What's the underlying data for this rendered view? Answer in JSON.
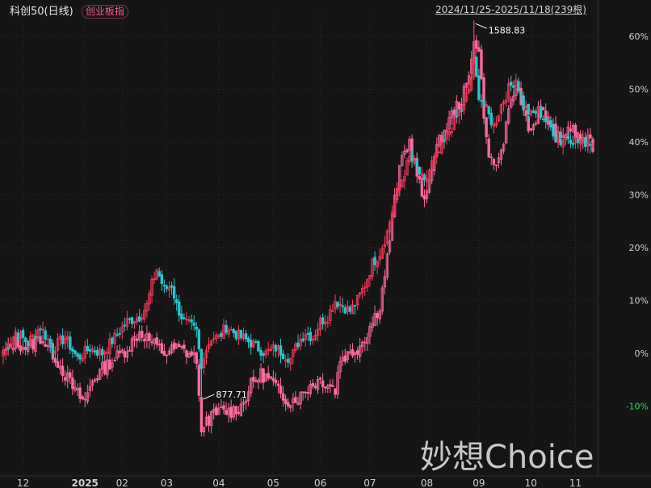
{
  "header": {
    "title": "科创50(日线)",
    "badge": "创业板指",
    "range": "2024/11/25-2025/11/18(239根)"
  },
  "watermark": "妙想Choice",
  "colors": {
    "background": "#151515",
    "up": "#ff3b5c",
    "down": "#27c6cf",
    "index2": "#ff6aa0",
    "grid": "#2e2e2e",
    "axis_text": "#cfcfcf",
    "negative_tick": "#2fd35c"
  },
  "chart_data": {
    "type": "line",
    "xlabel": "",
    "ylabel": "",
    "x_ticks": [
      "12",
      "2025",
      "02",
      "03",
      "04",
      "05",
      "06",
      "07",
      "08",
      "09",
      "10",
      "11"
    ],
    "y_ticks": [
      "60%",
      "50%",
      "40%",
      "30%",
      "20%",
      "10%",
      "0%",
      "-10%"
    ],
    "ylim": [
      -20,
      65
    ],
    "grid": true,
    "annotations": [
      {
        "text": "1588.83",
        "at_percent": 63
      },
      {
        "text": "877.71",
        "at_percent": -9
      }
    ],
    "series": [
      {
        "type": "candlestick",
        "points": [
          [
            0,
            0
          ],
          [
            5,
            4
          ],
          [
            10,
            2
          ],
          [
            15,
            5
          ],
          [
            20,
            1
          ],
          [
            25,
            3
          ],
          [
            30,
            -1
          ],
          [
            35,
            1
          ],
          [
            40,
            0
          ],
          [
            45,
            3
          ],
          [
            50,
            6
          ],
          [
            55,
            7
          ],
          [
            58,
            9
          ],
          [
            60,
            13
          ],
          [
            62,
            16
          ],
          [
            65,
            12
          ],
          [
            68,
            13
          ],
          [
            70,
            9
          ],
          [
            73,
            6
          ],
          [
            76,
            5
          ],
          [
            78,
            4
          ],
          [
            80,
            -3
          ],
          [
            81,
            0
          ],
          [
            84,
            3
          ],
          [
            87,
            3
          ],
          [
            90,
            5
          ],
          [
            93,
            4
          ],
          [
            96,
            3
          ],
          [
            100,
            2
          ],
          [
            103,
            1
          ],
          [
            106,
            0
          ],
          [
            110,
            1
          ],
          [
            113,
            0
          ],
          [
            116,
            -1
          ],
          [
            119,
            2
          ],
          [
            122,
            4
          ],
          [
            125,
            3
          ],
          [
            128,
            6
          ],
          [
            131,
            7
          ],
          [
            134,
            10
          ],
          [
            137,
            9
          ],
          [
            140,
            8
          ],
          [
            143,
            10
          ],
          [
            146,
            13
          ],
          [
            149,
            17
          ],
          [
            152,
            19
          ],
          [
            155,
            23
          ],
          [
            158,
            29
          ],
          [
            161,
            33
          ],
          [
            164,
            37
          ],
          [
            167,
            35
          ],
          [
            170,
            32
          ],
          [
            173,
            36
          ],
          [
            176,
            38
          ],
          [
            179,
            41
          ],
          [
            182,
            44
          ],
          [
            185,
            46
          ],
          [
            188,
            50
          ],
          [
            190,
            55
          ],
          [
            192,
            49
          ],
          [
            195,
            46
          ],
          [
            198,
            43
          ],
          [
            201,
            47
          ],
          [
            204,
            50
          ],
          [
            207,
            52
          ],
          [
            210,
            47
          ],
          [
            213,
            45
          ],
          [
            216,
            46
          ],
          [
            219,
            44
          ],
          [
            222,
            42
          ],
          [
            225,
            40
          ],
          [
            228,
            41
          ],
          [
            232,
            40
          ],
          [
            236,
            40
          ],
          [
            238,
            40
          ]
        ]
      },
      {
        "type": "candlestick",
        "points": [
          [
            0,
            0
          ],
          [
            5,
            2
          ],
          [
            10,
            1
          ],
          [
            15,
            3
          ],
          [
            20,
            0
          ],
          [
            25,
            -4
          ],
          [
            30,
            -8
          ],
          [
            33,
            -9
          ],
          [
            36,
            -5
          ],
          [
            40,
            -3
          ],
          [
            45,
            -1
          ],
          [
            50,
            1
          ],
          [
            55,
            4
          ],
          [
            58,
            3
          ],
          [
            60,
            2
          ],
          [
            65,
            0
          ],
          [
            70,
            1
          ],
          [
            75,
            0
          ],
          [
            78,
            -1
          ],
          [
            80,
            -16
          ],
          [
            81,
            -13
          ],
          [
            84,
            -12
          ],
          [
            88,
            -11
          ],
          [
            92,
            -11
          ],
          [
            96,
            -10
          ],
          [
            100,
            -6
          ],
          [
            104,
            -4
          ],
          [
            108,
            -5
          ],
          [
            112,
            -8
          ],
          [
            116,
            -9
          ],
          [
            120,
            -8
          ],
          [
            124,
            -6
          ],
          [
            128,
            -5
          ],
          [
            132,
            -6
          ],
          [
            134,
            -7
          ],
          [
            136,
            -1
          ],
          [
            140,
            0
          ],
          [
            143,
            1
          ],
          [
            146,
            3
          ],
          [
            149,
            6
          ],
          [
            152,
            9
          ],
          [
            155,
            18
          ],
          [
            158,
            29
          ],
          [
            161,
            37
          ],
          [
            164,
            40
          ],
          [
            167,
            34
          ],
          [
            170,
            28
          ],
          [
            173,
            36
          ],
          [
            176,
            40
          ],
          [
            179,
            43
          ],
          [
            182,
            46
          ],
          [
            185,
            48
          ],
          [
            188,
            52
          ],
          [
            190,
            60
          ],
          [
            192,
            57
          ],
          [
            195,
            40
          ],
          [
            198,
            35
          ],
          [
            201,
            38
          ],
          [
            204,
            45
          ],
          [
            207,
            51
          ],
          [
            210,
            46
          ],
          [
            213,
            42
          ],
          [
            216,
            46
          ],
          [
            219,
            45
          ],
          [
            222,
            42
          ],
          [
            225,
            40
          ],
          [
            228,
            43
          ],
          [
            232,
            41
          ],
          [
            236,
            40
          ],
          [
            238,
            39
          ]
        ]
      }
    ]
  }
}
